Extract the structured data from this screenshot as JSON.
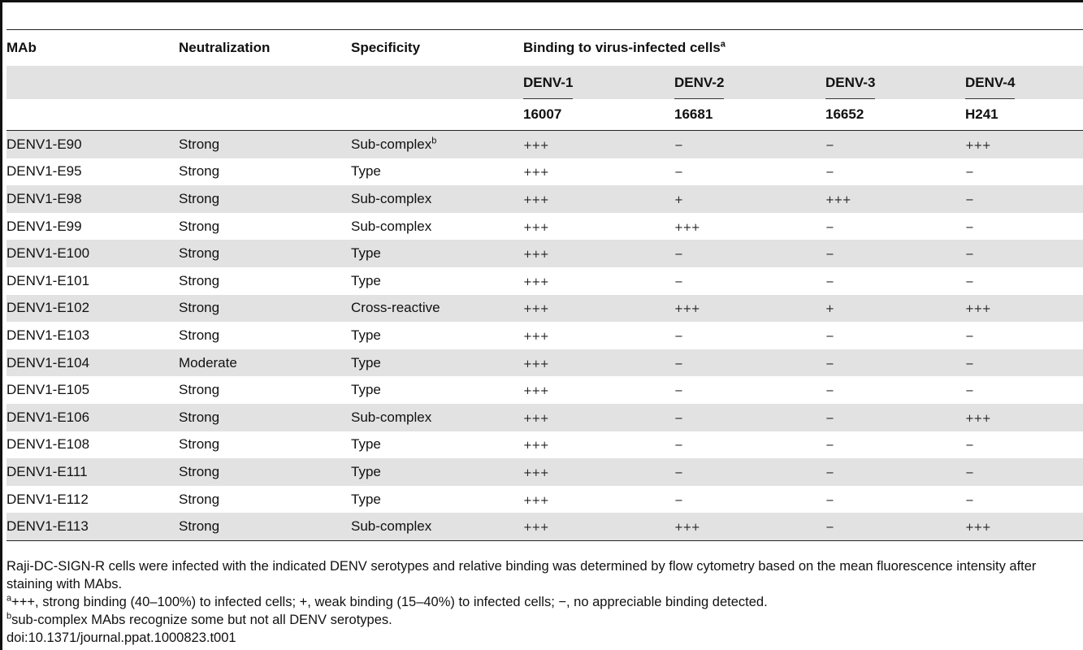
{
  "columns": {
    "mab": "MAb",
    "neutralization": "Neutralization",
    "specificity": "Specificity",
    "binding": "Binding to virus-infected cells",
    "binding_sup": "a"
  },
  "serotypes": [
    "DENV-1",
    "DENV-2",
    "DENV-3",
    "DENV-4"
  ],
  "strains": [
    "16007",
    "16681",
    "16652",
    "H241"
  ],
  "rows": [
    {
      "mab": "DENV1-E90",
      "neut": "Strong",
      "spec": "Sub-complex",
      "spec_sup": "b",
      "b": [
        "+++",
        "−",
        "−",
        "+++"
      ]
    },
    {
      "mab": "DENV1-E95",
      "neut": "Strong",
      "spec": "Type",
      "spec_sup": "",
      "b": [
        "+++",
        "−",
        "−",
        "−"
      ]
    },
    {
      "mab": "DENV1-E98",
      "neut": "Strong",
      "spec": "Sub-complex",
      "spec_sup": "",
      "b": [
        "+++",
        "+",
        "+++",
        "−"
      ]
    },
    {
      "mab": "DENV1-E99",
      "neut": "Strong",
      "spec": "Sub-complex",
      "spec_sup": "",
      "b": [
        "+++",
        "+++",
        "−",
        "−"
      ]
    },
    {
      "mab": "DENV1-E100",
      "neut": "Strong",
      "spec": "Type",
      "spec_sup": "",
      "b": [
        "+++",
        "−",
        "−",
        "−"
      ]
    },
    {
      "mab": "DENV1-E101",
      "neut": "Strong",
      "spec": "Type",
      "spec_sup": "",
      "b": [
        "+++",
        "−",
        "−",
        "−"
      ]
    },
    {
      "mab": "DENV1-E102",
      "neut": "Strong",
      "spec": "Cross-reactive",
      "spec_sup": "",
      "b": [
        "+++",
        "+++",
        "+",
        "+++"
      ]
    },
    {
      "mab": "DENV1-E103",
      "neut": "Strong",
      "spec": "Type",
      "spec_sup": "",
      "b": [
        "+++",
        "−",
        "−",
        "−"
      ]
    },
    {
      "mab": "DENV1-E104",
      "neut": "Moderate",
      "spec": "Type",
      "spec_sup": "",
      "b": [
        "+++",
        "−",
        "−",
        "−"
      ]
    },
    {
      "mab": "DENV1-E105",
      "neut": "Strong",
      "spec": "Type",
      "spec_sup": "",
      "b": [
        "+++",
        "−",
        "−",
        "−"
      ]
    },
    {
      "mab": "DENV1-E106",
      "neut": "Strong",
      "spec": "Sub-complex",
      "spec_sup": "",
      "b": [
        "+++",
        "−",
        "−",
        "+++"
      ]
    },
    {
      "mab": "DENV1-E108",
      "neut": "Strong",
      "spec": "Type",
      "spec_sup": "",
      "b": [
        "+++",
        "−",
        "−",
        "−"
      ]
    },
    {
      "mab": "DENV1-E111",
      "neut": "Strong",
      "spec": "Type",
      "spec_sup": "",
      "b": [
        "+++",
        "−",
        "−",
        "−"
      ]
    },
    {
      "mab": "DENV1-E112",
      "neut": "Strong",
      "spec": "Type",
      "spec_sup": "",
      "b": [
        "+++",
        "−",
        "−",
        "−"
      ]
    },
    {
      "mab": "DENV1-E113",
      "neut": "Strong",
      "spec": "Sub-complex",
      "spec_sup": "",
      "b": [
        "+++",
        "+++",
        "−",
        "+++"
      ]
    }
  ],
  "footnotes": {
    "caption": "Raji-DC-SIGN-R cells were infected with the indicated DENV serotypes and relative binding was determined by flow cytometry based on the mean fluorescence intensity after staining with MAbs.",
    "a_mark": "a",
    "a_text": "+++, strong binding (40–100%) to infected cells; +, weak binding (15–40%) to infected cells; −, no appreciable binding detected.",
    "b_mark": "b",
    "b_text": "sub-complex MAbs recognize some but not all DENV serotypes.",
    "doi": "doi:10.1371/journal.ppat.1000823.t001"
  },
  "colors": {
    "stripe": "#e2e2e2",
    "rule": "#222222"
  }
}
